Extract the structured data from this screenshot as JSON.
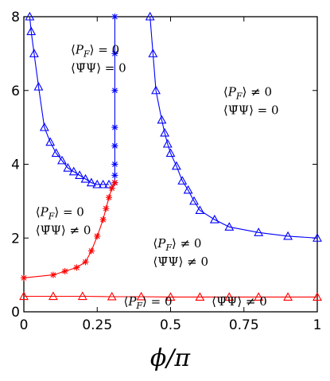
{
  "chart_data": {
    "type": "line",
    "title": "",
    "xlabel": "ϕ/π",
    "ylabel": "",
    "xlim": [
      0,
      1
    ],
    "ylim": [
      0,
      8
    ],
    "grid": false,
    "xticks": [
      "0",
      "0.25",
      "0.5",
      "0.75",
      "1"
    ],
    "xtick_values": [
      0,
      0.25,
      0.5,
      0.75,
      1
    ],
    "yticks": [
      "0",
      "2",
      "4",
      "6",
      "8"
    ],
    "ytick_values": [
      0,
      2,
      4,
      6,
      8
    ],
    "series": [
      {
        "color": "#0000ff",
        "marker": "triangle",
        "x": [
          0.02,
          0.025,
          0.035,
          0.05,
          0.07,
          0.09,
          0.11,
          0.13,
          0.15,
          0.17,
          0.19,
          0.21,
          0.23,
          0.25,
          0.27,
          0.29
        ],
        "y": [
          8.0,
          7.6,
          7.0,
          6.1,
          5.0,
          4.6,
          4.3,
          4.1,
          3.9,
          3.8,
          3.7,
          3.6,
          3.5,
          3.45,
          3.45,
          3.45
        ]
      },
      {
        "color": "#0000ff",
        "marker": "star",
        "x": [
          0.31,
          0.31,
          0.31,
          0.31,
          0.31,
          0.31,
          0.31,
          0.31
        ],
        "y": [
          8.0,
          7.0,
          6.0,
          5.0,
          4.5,
          4.0,
          3.7,
          3.5
        ]
      },
      {
        "color": "#0000ff",
        "marker": "triangle",
        "x": [
          0.43,
          0.44,
          0.45,
          0.47,
          0.48,
          0.49,
          0.5,
          0.52,
          0.54,
          0.56,
          0.58,
          0.6,
          0.65,
          0.7,
          0.8,
          0.9,
          1.0
        ],
        "y": [
          8.0,
          7.0,
          6.0,
          5.2,
          4.85,
          4.55,
          4.3,
          3.95,
          3.55,
          3.3,
          3.0,
          2.75,
          2.5,
          2.3,
          2.15,
          2.05,
          2.0
        ]
      },
      {
        "color": "#ff0000",
        "marker": "star",
        "x": [
          0.0,
          0.1,
          0.14,
          0.18,
          0.21,
          0.23,
          0.25,
          0.27,
          0.28,
          0.29,
          0.3,
          0.31
        ],
        "y": [
          0.92,
          1.0,
          1.1,
          1.2,
          1.35,
          1.65,
          2.05,
          2.5,
          2.8,
          3.1,
          3.35,
          3.5
        ]
      },
      {
        "color": "#ff0000",
        "marker": "triangle",
        "x": [
          0.0,
          0.1,
          0.2,
          0.3,
          0.4,
          0.5,
          0.6,
          0.7,
          0.8,
          0.9,
          1.0
        ],
        "y": [
          0.42,
          0.42,
          0.42,
          0.41,
          0.41,
          0.4,
          0.4,
          0.4,
          0.4,
          0.4,
          0.4
        ]
      }
    ],
    "annotations": [
      {
        "lines": [
          "⟨P_F⟩ = 0",
          "⟨Ψ̄Ψ⟩ = 0"
        ],
        "x": 0.16,
        "y": 7.0
      },
      {
        "lines": [
          "⟨P_F⟩ ≠ 0",
          "⟨Ψ̄Ψ⟩ = 0"
        ],
        "x": 0.68,
        "y": 5.85
      },
      {
        "lines": [
          "⟨P_F⟩ = 0",
          "⟨Ψ̄Ψ⟩ ≠ 0"
        ],
        "x": 0.04,
        "y": 2.6
      },
      {
        "lines": [
          "⟨P_F⟩ ≠ 0",
          "⟨Ψ̄Ψ⟩ ≠ 0"
        ],
        "x": 0.44,
        "y": 1.75
      },
      {
        "lines": [
          "⟨P_F⟩ = 0"
        ],
        "x": 0.34,
        "y": 0.17
      },
      {
        "lines": [
          "⟨Ψ̄Ψ⟩ ≠ 0"
        ],
        "x": 0.64,
        "y": 0.17
      }
    ]
  }
}
